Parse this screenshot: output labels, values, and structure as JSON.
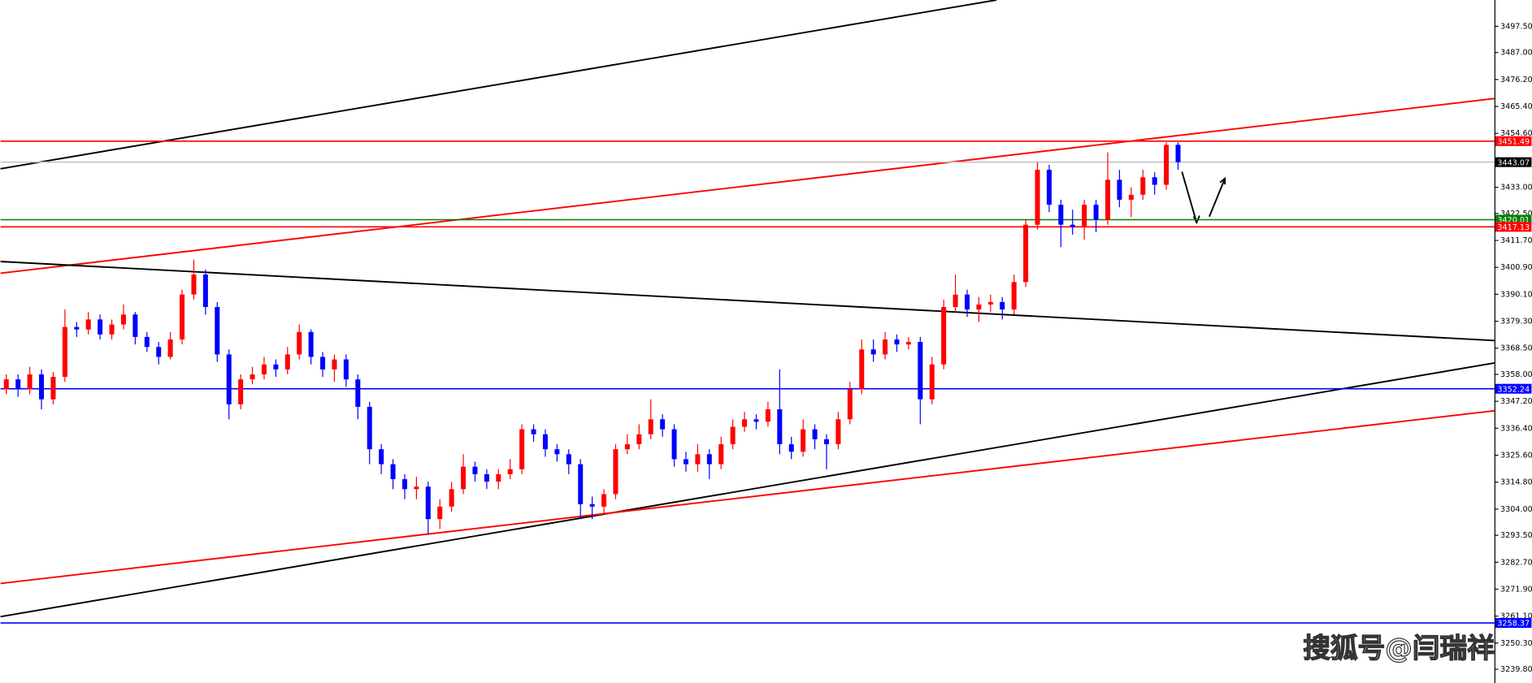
{
  "chart_data": {
    "type": "candlestick",
    "up_color": "#ff0000",
    "down_color": "#0000ff",
    "ylim": [
      3234.3,
      3508.06
    ],
    "yticks": [
      {
        "value": 3497.5,
        "label": "3497.50"
      },
      {
        "value": 3487,
        "label": "3487.00"
      },
      {
        "value": 3476.2,
        "label": "3476.20"
      },
      {
        "value": 3465.4,
        "label": "3465.40"
      },
      {
        "value": 3454.6,
        "label": "3454.60"
      },
      {
        "value": 3433,
        "label": "3433.00"
      },
      {
        "value": 3422.5,
        "label": "3422.50"
      },
      {
        "value": 3411.7,
        "label": "3411.70"
      },
      {
        "value": 3400.9,
        "label": "3400.90"
      },
      {
        "value": 3390.1,
        "label": "3390.10"
      },
      {
        "value": 3379.3,
        "label": "3379.30"
      },
      {
        "value": 3368.5,
        "label": "3368.50"
      },
      {
        "value": 3358,
        "label": "3358.00"
      },
      {
        "value": 3347.2,
        "label": "3347.20"
      },
      {
        "value": 3336.4,
        "label": "3336.40"
      },
      {
        "value": 3325.6,
        "label": "3325.60"
      },
      {
        "value": 3314.8,
        "label": "3314.80"
      },
      {
        "value": 3304,
        "label": "3304.00"
      },
      {
        "value": 3293.5,
        "label": "3293.50"
      },
      {
        "value": 3282.7,
        "label": "3282.70"
      },
      {
        "value": 3271.9,
        "label": "3271.90"
      },
      {
        "value": 3261.1,
        "label": "3261.10"
      },
      {
        "value": 3250.3,
        "label": "3250.30"
      },
      {
        "value": 3239.8,
        "label": "3239.80"
      }
    ],
    "levels": [
      {
        "value": 3451.49,
        "color": "#ff0000",
        "label_color": "#ff0000"
      },
      {
        "value": 3443.07,
        "color": "#c0c0c0",
        "label_color": "#000000"
      },
      {
        "value": 3420.01,
        "color": "#008000",
        "label_color": "#008000"
      },
      {
        "value": 3417.13,
        "color": "#ff0000",
        "label_color": "#ff0000"
      },
      {
        "value": 3352.24,
        "color": "#0000ff",
        "label_color": "#0000ff"
      },
      {
        "value": 3258.37,
        "color": "#0000ff",
        "label_color": "#0000ff"
      }
    ],
    "open": [
      3352,
      3356,
      3352,
      3358,
      3348,
      3357,
      3377,
      3376,
      3380,
      3374,
      3378,
      3382,
      3373,
      3369,
      3365,
      3372,
      3390,
      3398,
      3385,
      3366,
      3346,
      3356,
      3358,
      3362,
      3360,
      3366,
      3375,
      3365,
      3360,
      3364,
      3356,
      3345,
      3328,
      3322,
      3316,
      3312,
      3313,
      3300,
      3305,
      3312,
      3321,
      3318,
      3315,
      3318,
      3320,
      3336,
      3334,
      3328,
      3326,
      3322,
      3306,
      3305,
      3310,
      3328,
      3330,
      3334,
      3340,
      3336,
      3324,
      3322,
      3326,
      3322,
      3330,
      3337,
      3340,
      3339,
      3344,
      3330,
      3327,
      3336,
      3332,
      3330,
      3340,
      3352,
      3368,
      3366,
      3372,
      3370,
      3371,
      3348,
      3362,
      3385,
      3390,
      3384,
      3386,
      3387,
      3384,
      3395,
      3418,
      3440,
      3426,
      3418,
      3417,
      3426,
      3420,
      3436,
      3428,
      3430,
      3437,
      3434,
      3450
    ],
    "high": [
      3358,
      3358,
      3361,
      3360,
      3359,
      3384,
      3379,
      3383,
      3382,
      3380,
      3386,
      3383,
      3375,
      3371,
      3375,
      3392,
      3404,
      3400,
      3387,
      3368,
      3358,
      3361,
      3365,
      3364,
      3369,
      3378,
      3376,
      3367,
      3366,
      3366,
      3358,
      3347,
      3330,
      3324,
      3318,
      3317,
      3315,
      3308,
      3315,
      3326,
      3323,
      3320,
      3320,
      3324,
      3338,
      3338,
      3336,
      3330,
      3328,
      3324,
      3309,
      3312,
      3330,
      3334,
      3338,
      3348,
      3342,
      3338,
      3327,
      3330,
      3328,
      3333,
      3340,
      3343,
      3342,
      3347,
      3360,
      3333,
      3340,
      3338,
      3334,
      3343,
      3355,
      3372,
      3372,
      3375,
      3374,
      3373,
      3373,
      3365,
      3388,
      3398,
      3392,
      3389,
      3390,
      3389,
      3398,
      3420,
      3443,
      3442,
      3428,
      3424,
      3428,
      3428,
      3447,
      3440,
      3433,
      3440,
      3439,
      3451,
      3451
    ],
    "low": [
      3350,
      3349,
      3350,
      3344,
      3346,
      3355,
      3373,
      3374,
      3372,
      3372,
      3376,
      3370,
      3367,
      3362,
      3364,
      3370,
      3388,
      3382,
      3363,
      3340,
      3344,
      3354,
      3356,
      3357,
      3358,
      3364,
      3362,
      3357,
      3355,
      3353,
      3340,
      3322,
      3318,
      3312,
      3308,
      3308,
      3294,
      3296,
      3303,
      3310,
      3315,
      3312,
      3312,
      3316,
      3318,
      3331,
      3325,
      3323,
      3318,
      3300,
      3300,
      3302,
      3308,
      3326,
      3328,
      3332,
      3333,
      3321,
      3319,
      3319,
      3316,
      3320,
      3328,
      3335,
      3336,
      3337,
      3326,
      3324,
      3325,
      3328,
      3320,
      3328,
      3338,
      3350,
      3363,
      3364,
      3367,
      3368,
      3338,
      3346,
      3360,
      3383,
      3381,
      3379,
      3383,
      3380,
      3382,
      3393,
      3416,
      3423,
      3409,
      3414,
      3412,
      3415,
      3418,
      3425,
      3421,
      3428,
      3430,
      3432,
      3440
    ],
    "close": [
      3356,
      3352,
      3358,
      3348,
      3357,
      3377,
      3376,
      3380,
      3374,
      3378,
      3382,
      3373,
      3369,
      3365,
      3372,
      3390,
      3398,
      3385,
      3366,
      3346,
      3356,
      3358,
      3362,
      3360,
      3366,
      3375,
      3365,
      3360,
      3364,
      3356,
      3345,
      3328,
      3322,
      3316,
      3312,
      3313,
      3300,
      3305,
      3312,
      3321,
      3318,
      3315,
      3318,
      3320,
      3336,
      3334,
      3328,
      3326,
      3322,
      3306,
      3305,
      3310,
      3328,
      3330,
      3334,
      3340,
      3336,
      3324,
      3322,
      3326,
      3322,
      3330,
      3337,
      3340,
      3339,
      3344,
      3330,
      3327,
      3336,
      3332,
      3330,
      3340,
      3352,
      3368,
      3366,
      3372,
      3370,
      3371,
      3348,
      3362,
      3385,
      3390,
      3384,
      3386,
      3387,
      3384,
      3395,
      3418,
      3440,
      3426,
      3418,
      3417,
      3426,
      3420,
      3436,
      3428,
      3430,
      3437,
      3434,
      3450,
      3443.07
    ],
    "watermark": "搜狐号@闫瑞祥"
  }
}
